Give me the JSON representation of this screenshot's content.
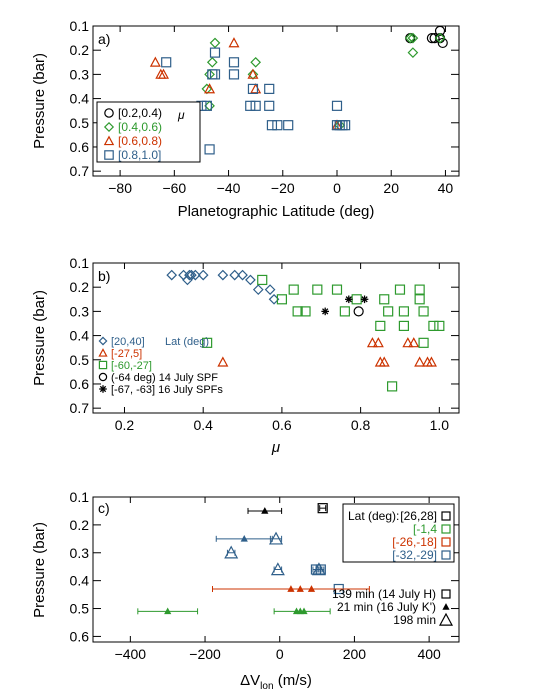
{
  "colors": {
    "black": "#000000",
    "green": "#2e9a2e",
    "red": "#cc3300",
    "blue": "#2f5f8a"
  },
  "chart_data": [
    {
      "type": "scatter",
      "panel_label": "a)",
      "xlabel": "Planetographic Latitude (deg)",
      "ylabel": "Pressure (bar)",
      "xlim": [
        -90,
        45
      ],
      "ylim": [
        0.72,
        0.1
      ],
      "xticks": [
        -80,
        -60,
        -40,
        -20,
        0,
        20,
        40
      ],
      "yticks": [
        0.1,
        0.2,
        0.3,
        0.4,
        0.5,
        0.6,
        0.7
      ],
      "legend": {
        "placement": "middle-left",
        "symbol_label": "μ"
      },
      "series": [
        {
          "name": "[0.2,0.4)",
          "marker": "circle",
          "color": "#000000",
          "points": [
            [
              27,
              0.15
            ],
            [
              35,
              0.15
            ],
            [
              36,
              0.15
            ],
            [
              38,
              0.12
            ],
            [
              39,
              0.17
            ],
            [
              38,
              0.15
            ]
          ]
        },
        {
          "name": "[0.4,0.6)",
          "marker": "diamond",
          "color": "#2e9a2e",
          "points": [
            [
              -45,
              0.17
            ],
            [
              -46,
              0.25
            ],
            [
              -47,
              0.3
            ],
            [
              -48,
              0.36
            ],
            [
              -47,
              0.43
            ],
            [
              -30,
              0.25
            ],
            [
              -31,
              0.3
            ],
            [
              1,
              0.51
            ],
            [
              27,
              0.15
            ],
            [
              28,
              0.15
            ],
            [
              28,
              0.21
            ],
            [
              38,
              0.15
            ]
          ]
        },
        {
          "name": "[0.6,0.8)",
          "marker": "triangle",
          "color": "#cc3300",
          "points": [
            [
              -67,
              0.25
            ],
            [
              -65,
              0.3
            ],
            [
              -64,
              0.3
            ],
            [
              -38,
              0.17
            ],
            [
              -30,
              0.36
            ],
            [
              -31,
              0.3
            ],
            [
              -47,
              0.36
            ],
            [
              0,
              0.51
            ]
          ]
        },
        {
          "name": "[0.8,1.0]",
          "marker": "square",
          "color": "#2f5f8a",
          "points": [
            [
              -63,
              0.25
            ],
            [
              -48,
              0.43
            ],
            [
              -50,
              0.43
            ],
            [
              -46,
              0.3
            ],
            [
              -45,
              0.3
            ],
            [
              -45,
              0.21
            ],
            [
              -38,
              0.25
            ],
            [
              -38,
              0.3
            ],
            [
              -31,
              0.36
            ],
            [
              -32,
              0.43
            ],
            [
              -30,
              0.43
            ],
            [
              -25,
              0.36
            ],
            [
              -25,
              0.43
            ],
            [
              -24,
              0.51
            ],
            [
              -22,
              0.51
            ],
            [
              -18,
              0.51
            ],
            [
              0,
              0.43
            ],
            [
              0,
              0.51
            ],
            [
              1,
              0.51
            ],
            [
              2,
              0.51
            ],
            [
              3,
              0.51
            ],
            [
              -47,
              0.61
            ]
          ]
        }
      ]
    },
    {
      "type": "scatter",
      "panel_label": "b)",
      "xlabel": "μ",
      "ylabel": "Pressure (bar)",
      "xlim": [
        0.12,
        1.05
      ],
      "ylim": [
        0.72,
        0.1
      ],
      "xticks": [
        0.2,
        0.4,
        0.6,
        0.8,
        1.0
      ],
      "yticks": [
        0.1,
        0.2,
        0.3,
        0.4,
        0.5,
        0.6,
        0.7
      ],
      "legend": {
        "placement": "bottom-left",
        "title": "Lat (deg)"
      },
      "series": [
        {
          "name": "[20,40]",
          "marker": "diamond",
          "color": "#2f5f8a",
          "points": [
            [
              0.32,
              0.15
            ],
            [
              0.35,
              0.15
            ],
            [
              0.36,
              0.17
            ],
            [
              0.365,
              0.15
            ],
            [
              0.37,
              0.15
            ],
            [
              0.38,
              0.15
            ],
            [
              0.4,
              0.15
            ],
            [
              0.45,
              0.15
            ],
            [
              0.48,
              0.15
            ],
            [
              0.5,
              0.15
            ],
            [
              0.52,
              0.17
            ],
            [
              0.54,
              0.21
            ],
            [
              0.57,
              0.21
            ],
            [
              0.58,
              0.25
            ]
          ]
        },
        {
          "name": "[-27,5]",
          "marker": "triangle",
          "color": "#cc3300",
          "points": [
            [
              0.45,
              0.51
            ],
            [
              0.83,
              0.43
            ],
            [
              0.845,
              0.43
            ],
            [
              0.85,
              0.51
            ],
            [
              0.86,
              0.51
            ],
            [
              0.92,
              0.43
            ],
            [
              0.935,
              0.43
            ],
            [
              0.95,
              0.51
            ],
            [
              0.97,
              0.51
            ],
            [
              0.98,
              0.51
            ]
          ]
        },
        {
          "name": "[-60,-27]",
          "marker": "square",
          "color": "#2e9a2e",
          "points": [
            [
              0.41,
              0.43
            ],
            [
              0.55,
              0.17
            ],
            [
              0.6,
              0.25
            ],
            [
              0.63,
              0.21
            ],
            [
              0.64,
              0.3
            ],
            [
              0.66,
              0.3
            ],
            [
              0.69,
              0.21
            ],
            [
              0.74,
              0.21
            ],
            [
              0.76,
              0.3
            ],
            [
              0.79,
              0.25
            ],
            [
              0.85,
              0.36
            ],
            [
              0.86,
              0.25
            ],
            [
              0.87,
              0.3
            ],
            [
              0.88,
              0.61
            ],
            [
              0.9,
              0.21
            ],
            [
              0.91,
              0.3
            ],
            [
              0.91,
              0.36
            ],
            [
              0.95,
              0.21
            ],
            [
              0.95,
              0.25
            ],
            [
              0.96,
              0.3
            ],
            [
              0.96,
              0.43
            ],
            [
              0.985,
              0.36
            ],
            [
              1.0,
              0.36
            ]
          ]
        },
        {
          "name": "(-64 deg) 14 July SPF",
          "marker": "circle",
          "color": "#000000",
          "points": [
            [
              0.795,
              0.3
            ]
          ]
        },
        {
          "name": "[-67, -63] 16 July SPFs",
          "marker": "asterisk",
          "color": "#000000",
          "points": [
            [
              0.71,
              0.3
            ],
            [
              0.77,
              0.25
            ],
            [
              0.81,
              0.25
            ]
          ]
        }
      ]
    },
    {
      "type": "scatter",
      "panel_label": "c)",
      "xlabel": "ΔV",
      "xlabel_sub": "lon",
      "xlabel_unit": " (m/s)",
      "ylabel": "Pressure (bar)",
      "xlim": [
        -500,
        480
      ],
      "ylim": [
        0.62,
        0.1
      ],
      "xticks": [
        -400,
        -200,
        0,
        200,
        400
      ],
      "yticks": [
        0.1,
        0.2,
        0.3,
        0.4,
        0.5,
        0.6
      ],
      "legend_lat": {
        "placement": "top-right",
        "title": "Lat (deg):",
        "entries": [
          {
            "label": "[26,28]",
            "color": "#000000"
          },
          {
            "label": "[-1,4",
            "color": "#2e9a2e"
          },
          {
            "label": "[-26,-18]",
            "color": "#cc3300"
          },
          {
            "label": "[-32,-29]",
            "color": "#2f5f8a"
          }
        ]
      },
      "legend_time": {
        "placement": "right",
        "entries": [
          {
            "label": "139 min (14 July H)",
            "marker": "square"
          },
          {
            "label": "21 min (16 July K')",
            "marker": "small-triangle"
          },
          {
            "label": "198 min",
            "marker": "big-triangle"
          }
        ]
      },
      "points": [
        {
          "x": 115,
          "y": 0.14,
          "marker": "square",
          "color": "#000000",
          "err": [
            8,
            8
          ]
        },
        {
          "x": -40,
          "y": 0.15,
          "marker": "small-triangle",
          "color": "#000000",
          "err": [
            45,
            45
          ]
        },
        {
          "x": -95,
          "y": 0.25,
          "marker": "small-triangle",
          "color": "#2f5f8a",
          "err": [
            75,
            75
          ]
        },
        {
          "x": -10,
          "y": 0.25,
          "marker": "big-triangle",
          "color": "#2f5f8a",
          "err": [
            15,
            15
          ]
        },
        {
          "x": -130,
          "y": 0.3,
          "marker": "big-triangle",
          "color": "#2f5f8a",
          "err": [
            10,
            10
          ]
        },
        {
          "x": -5,
          "y": 0.36,
          "marker": "big-triangle",
          "color": "#2f5f8a",
          "err": [
            10,
            10
          ]
        },
        {
          "x": 97,
          "y": 0.36,
          "marker": "square",
          "color": "#2f5f8a",
          "err": [
            8,
            8
          ]
        },
        {
          "x": 105,
          "y": 0.36,
          "marker": "big-triangle",
          "color": "#2f5f8a",
          "err": [
            8,
            8
          ]
        },
        {
          "x": 110,
          "y": 0.36,
          "marker": "square",
          "color": "#2f5f8a",
          "err": [
            8,
            8
          ]
        },
        {
          "x": 158,
          "y": 0.43,
          "marker": "square",
          "color": "#2f5f8a",
          "err": [
            0,
            0
          ]
        },
        {
          "x": 30,
          "y": 0.43,
          "marker": "small-triangle",
          "color": "#cc3300",
          "err": [
            210,
            210
          ]
        },
        {
          "x": 55,
          "y": 0.43,
          "marker": "small-triangle",
          "color": "#cc3300",
          "err": [
            0,
            0
          ]
        },
        {
          "x": 85,
          "y": 0.43,
          "marker": "small-triangle",
          "color": "#cc3300",
          "err": [
            0,
            0
          ]
        },
        {
          "x": -300,
          "y": 0.51,
          "marker": "small-triangle",
          "color": "#2e9a2e",
          "err": [
            80,
            80
          ]
        },
        {
          "x": 45,
          "y": 0.51,
          "marker": "small-triangle",
          "color": "#2e9a2e",
          "err": [
            60,
            90
          ]
        },
        {
          "x": 55,
          "y": 0.51,
          "marker": "small-triangle",
          "color": "#2e9a2e",
          "err": [
            0,
            0
          ]
        },
        {
          "x": 65,
          "y": 0.51,
          "marker": "small-triangle",
          "color": "#2e9a2e",
          "err": [
            0,
            0
          ]
        }
      ]
    }
  ]
}
